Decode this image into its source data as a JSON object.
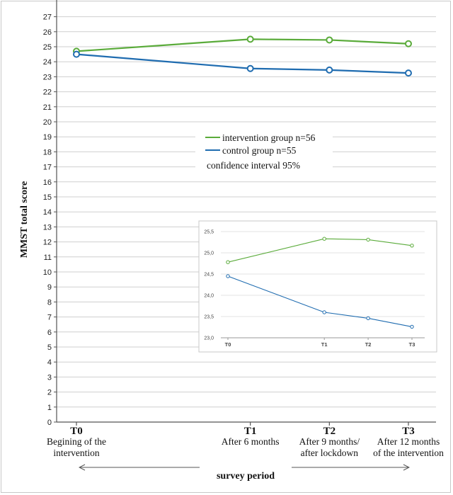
{
  "chart_data": {
    "type": "line",
    "ylabel": "MMST total score",
    "xlabel": "survey period",
    "ylim": [
      0,
      27
    ],
    "ytick_step": 1,
    "grid": true,
    "categories": [
      {
        "code": "T0",
        "label": [
          "Begining of the",
          "intervention"
        ]
      },
      {
        "code": "T1",
        "label": [
          "After 6 months"
        ]
      },
      {
        "code": "T2",
        "label": [
          "After 9 months/",
          "after lockdown"
        ]
      },
      {
        "code": "T3",
        "label": [
          "After 12 months",
          "of the intervention"
        ]
      }
    ],
    "x": [
      0,
      11,
      16,
      21
    ],
    "series": [
      {
        "name": "intervention group n=56",
        "color": "#5aab3a",
        "values": [
          24.7,
          25.5,
          25.45,
          25.2
        ]
      },
      {
        "name": "control group n=55",
        "color": "#1f6cb0",
        "values": [
          24.5,
          23.55,
          23.45,
          23.25
        ]
      }
    ],
    "legend_note": "confidence interval 95%",
    "legend_position": "center",
    "inset": {
      "ylim": [
        23.0,
        25.5
      ],
      "yticks": [
        "23,0",
        "23,5",
        "24,0",
        "24,5",
        "25,0",
        "25,5"
      ],
      "xticks": [
        "T0",
        "T1",
        "T2",
        "T3"
      ],
      "series": [
        {
          "name": "intervention group",
          "color": "#5aab3a",
          "values": [
            24.78,
            25.33,
            25.31,
            25.17
          ]
        },
        {
          "name": "control group",
          "color": "#1f6cb0",
          "values": [
            24.45,
            23.6,
            23.46,
            23.26
          ]
        }
      ]
    }
  }
}
